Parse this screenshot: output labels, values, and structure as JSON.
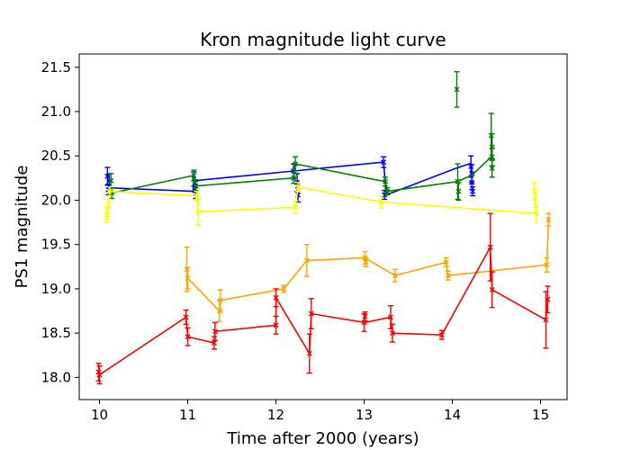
{
  "chart_data": {
    "type": "line",
    "title": "Kron magnitude light curve",
    "xlabel": "Time after 2000 (years)",
    "ylabel": "PS1 magnitude",
    "xlim": [
      9.77,
      15.3
    ],
    "ylim": [
      17.75,
      21.65
    ],
    "xticks": [
      "10",
      "11",
      "12",
      "13",
      "14",
      "15"
    ],
    "xtick_values": [
      10,
      11,
      12,
      13,
      14,
      15
    ],
    "yticks": [
      "18.0",
      "18.5",
      "19.0",
      "19.5",
      "20.0",
      "20.5",
      "21.0",
      "21.5"
    ],
    "ytick_values": [
      18.0,
      18.5,
      19.0,
      19.5,
      20.0,
      20.5,
      21.0,
      21.5
    ],
    "grid": false,
    "series": [
      {
        "name": "blue",
        "color": "#0000ff",
        "line": [
          [
            10.12,
            20.14
          ],
          [
            11.06,
            20.1
          ],
          [
            11.07,
            20.22
          ],
          [
            12.2,
            20.33
          ],
          [
            13.22,
            20.43
          ],
          [
            13.25,
            20.06
          ],
          [
            14.04,
            20.36
          ],
          [
            14.22,
            20.42
          ]
        ],
        "points": [
          {
            "x": 10.09,
            "y": 20.27,
            "err": 0.1
          },
          {
            "x": 10.11,
            "y": 20.22,
            "err": 0.08
          },
          {
            "x": 10.1,
            "y": 20.12,
            "err": 0.06
          },
          {
            "x": 11.07,
            "y": 20.24,
            "err": 0.08
          },
          {
            "x": 11.08,
            "y": 20.16,
            "err": 0.07
          },
          {
            "x": 11.09,
            "y": 20.08,
            "err": 0.06
          },
          {
            "x": 12.2,
            "y": 20.33,
            "err": 0.08
          },
          {
            "x": 12.24,
            "y": 20.2,
            "err": 0.1
          },
          {
            "x": 12.25,
            "y": 20.06,
            "err": 0.08
          },
          {
            "x": 13.22,
            "y": 20.43,
            "err": 0.06
          },
          {
            "x": 13.23,
            "y": 20.06,
            "err": 0.05
          },
          {
            "x": 14.21,
            "y": 20.38,
            "err": 0.12
          },
          {
            "x": 14.22,
            "y": 20.3,
            "err": 0.1
          },
          {
            "x": 14.22,
            "y": 20.2,
            "err": 0.08
          },
          {
            "x": 14.23,
            "y": 20.1,
            "err": 0.05
          }
        ]
      },
      {
        "name": "green",
        "color": "#008000",
        "line": [
          [
            10.13,
            20.08
          ],
          [
            11.07,
            20.28
          ],
          [
            11.09,
            20.16
          ],
          [
            12.2,
            20.25
          ],
          [
            12.22,
            20.41
          ],
          [
            13.24,
            20.21
          ],
          [
            13.26,
            20.1
          ],
          [
            14.05,
            20.21
          ],
          [
            14.22,
            20.28
          ],
          [
            14.44,
            20.49
          ]
        ],
        "points": [
          {
            "x": 10.13,
            "y": 20.22,
            "err": 0.08
          },
          {
            "x": 10.14,
            "y": 20.08,
            "err": 0.06
          },
          {
            "x": 11.07,
            "y": 20.28,
            "err": 0.06
          },
          {
            "x": 11.09,
            "y": 20.16,
            "err": 0.05
          },
          {
            "x": 12.2,
            "y": 20.25,
            "err": 0.06
          },
          {
            "x": 12.22,
            "y": 20.41,
            "err": 0.08
          },
          {
            "x": 13.24,
            "y": 20.21,
            "err": 0.05
          },
          {
            "x": 13.26,
            "y": 20.1,
            "err": 0.04
          },
          {
            "x": 14.05,
            "y": 21.25,
            "err": 0.2
          },
          {
            "x": 14.06,
            "y": 20.21,
            "err": 0.2
          },
          {
            "x": 14.07,
            "y": 20.1,
            "err": 0.1
          },
          {
            "x": 14.44,
            "y": 20.73,
            "err": 0.25
          },
          {
            "x": 14.45,
            "y": 20.6,
            "err": 0.15
          },
          {
            "x": 14.45,
            "y": 20.49,
            "err": 0.1
          },
          {
            "x": 14.45,
            "y": 20.36,
            "err": 0.1
          }
        ]
      },
      {
        "name": "yellow",
        "color": "#ffff00",
        "line": [
          [
            10.1,
            20.1
          ],
          [
            11.1,
            20.05
          ],
          [
            11.12,
            19.87
          ],
          [
            12.22,
            19.92
          ],
          [
            12.25,
            20.15
          ],
          [
            13.19,
            19.98
          ],
          [
            14.95,
            19.85
          ]
        ],
        "points": [
          {
            "x": 10.08,
            "y": 19.8,
            "err": 0.05
          },
          {
            "x": 10.09,
            "y": 19.87,
            "err": 0.05
          },
          {
            "x": 10.1,
            "y": 19.96,
            "err": 0.05
          },
          {
            "x": 10.11,
            "y": 20.1,
            "err": 0.05
          },
          {
            "x": 11.1,
            "y": 20.05,
            "err": 0.05
          },
          {
            "x": 11.12,
            "y": 19.87,
            "err": 0.15
          },
          {
            "x": 12.22,
            "y": 19.92,
            "err": 0.07
          },
          {
            "x": 12.25,
            "y": 20.15,
            "err": 0.05
          },
          {
            "x": 13.19,
            "y": 19.98,
            "err": 0.07
          },
          {
            "x": 14.93,
            "y": 20.1,
            "err": 0.1
          },
          {
            "x": 14.94,
            "y": 20.02,
            "err": 0.1
          },
          {
            "x": 14.95,
            "y": 19.85,
            "err": 0.1
          }
        ]
      },
      {
        "name": "orange",
        "color": "#ffa500",
        "line": [
          [
            10.99,
            19.22
          ],
          [
            11.0,
            19.12
          ],
          [
            11.36,
            18.75
          ],
          [
            11.37,
            18.87
          ],
          [
            12.09,
            19.0
          ],
          [
            12.35,
            19.32
          ],
          [
            13.01,
            19.35
          ],
          [
            13.35,
            19.15
          ],
          [
            13.93,
            19.3
          ],
          [
            13.95,
            19.15
          ],
          [
            15.07,
            19.27
          ],
          [
            15.09,
            19.78
          ]
        ],
        "points": [
          {
            "x": 10.99,
            "y": 19.22,
            "err": 0.25
          },
          {
            "x": 11.0,
            "y": 19.12,
            "err": 0.12
          },
          {
            "x": 11.36,
            "y": 18.75,
            "err": 0.12
          },
          {
            "x": 11.37,
            "y": 18.87,
            "err": 0.12
          },
          {
            "x": 12.09,
            "y": 19.0,
            "err": 0.04
          },
          {
            "x": 12.35,
            "y": 19.32,
            "err": 0.18
          },
          {
            "x": 13.01,
            "y": 19.35,
            "err": 0.07
          },
          {
            "x": 13.02,
            "y": 19.3,
            "err": 0.05
          },
          {
            "x": 13.35,
            "y": 19.15,
            "err": 0.07
          },
          {
            "x": 13.93,
            "y": 19.3,
            "err": 0.05
          },
          {
            "x": 13.95,
            "y": 19.15,
            "err": 0.05
          },
          {
            "x": 15.07,
            "y": 19.27,
            "err": 0.08
          },
          {
            "x": 15.09,
            "y": 19.78,
            "err": 0.07
          }
        ]
      },
      {
        "name": "red",
        "color": "#ff0000",
        "line": [
          [
            10.0,
            18.03
          ],
          [
            10.98,
            18.68
          ],
          [
            11.0,
            18.46
          ],
          [
            11.3,
            18.39
          ],
          [
            11.31,
            18.52
          ],
          [
            12.0,
            18.59
          ],
          [
            12.0,
            18.9
          ],
          [
            12.38,
            18.27
          ],
          [
            12.4,
            18.72
          ],
          [
            13.0,
            18.62
          ],
          [
            13.01,
            18.62
          ],
          [
            13.3,
            18.68
          ],
          [
            13.32,
            18.5
          ],
          [
            13.88,
            18.48
          ],
          [
            14.43,
            19.47
          ],
          [
            14.45,
            18.99
          ],
          [
            15.06,
            18.65
          ],
          [
            15.08,
            18.88
          ]
        ],
        "points": [
          {
            "x": 9.99,
            "y": 18.06,
            "err": 0.1
          },
          {
            "x": 10.0,
            "y": 18.03,
            "err": 0.1
          },
          {
            "x": 10.98,
            "y": 18.68,
            "err": 0.08
          },
          {
            "x": 11.0,
            "y": 18.46,
            "err": 0.1
          },
          {
            "x": 11.3,
            "y": 18.39,
            "err": 0.07
          },
          {
            "x": 11.31,
            "y": 18.52,
            "err": 0.1
          },
          {
            "x": 12.0,
            "y": 18.59,
            "err": 0.1
          },
          {
            "x": 12.0,
            "y": 18.9,
            "err": 0.1
          },
          {
            "x": 12.38,
            "y": 18.27,
            "err": 0.22
          },
          {
            "x": 12.4,
            "y": 18.72,
            "err": 0.17
          },
          {
            "x": 13.0,
            "y": 18.62,
            "err": 0.1
          },
          {
            "x": 13.01,
            "y": 18.69,
            "err": 0.05
          },
          {
            "x": 13.3,
            "y": 18.68,
            "err": 0.13
          },
          {
            "x": 13.32,
            "y": 18.5,
            "err": 0.1
          },
          {
            "x": 13.88,
            "y": 18.48,
            "err": 0.05
          },
          {
            "x": 14.43,
            "y": 19.47,
            "err": 0.38
          },
          {
            "x": 14.45,
            "y": 18.99,
            "err": 0.2
          },
          {
            "x": 15.06,
            "y": 18.65,
            "err": 0.32
          },
          {
            "x": 15.08,
            "y": 18.88,
            "err": 0.15
          }
        ]
      }
    ]
  }
}
